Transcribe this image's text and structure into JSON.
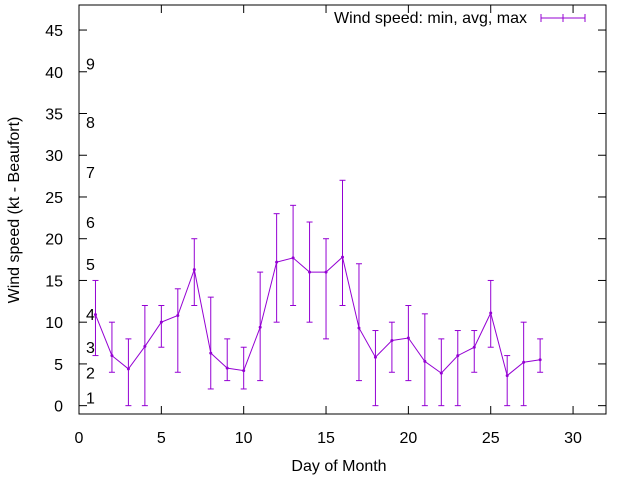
{
  "chart_data": {
    "type": "line",
    "title": "",
    "xlabel": "Day of Month",
    "ylabel": "Wind speed (kt - Beaufort)",
    "xlim": [
      0,
      32
    ],
    "ylim": [
      -1,
      48
    ],
    "xticks": [
      0,
      5,
      10,
      15,
      20,
      25,
      30
    ],
    "yticks": [
      0,
      5,
      10,
      15,
      20,
      25,
      30,
      35,
      40,
      45
    ],
    "grid": false,
    "legend_position": "top-right",
    "beaufort_labels": [
      {
        "label": "1",
        "value": 1
      },
      {
        "label": "2",
        "value": 4
      },
      {
        "label": "3",
        "value": 7
      },
      {
        "label": "4",
        "value": 11
      },
      {
        "label": "5",
        "value": 17
      },
      {
        "label": "6",
        "value": 22
      },
      {
        "label": "7",
        "value": 28
      },
      {
        "label": "8",
        "value": 34
      },
      {
        "label": "9",
        "value": 41
      }
    ],
    "series": [
      {
        "name": "Wind speed: min, avg, max",
        "color": "#9400d3",
        "points": [
          {
            "x": 1,
            "avg": 10.9,
            "min": 6,
            "max": 15
          },
          {
            "x": 2,
            "avg": 6.0,
            "min": 4,
            "max": 10
          },
          {
            "x": 3,
            "avg": 4.4,
            "min": 0,
            "max": 8
          },
          {
            "x": 4,
            "avg": 7.1,
            "min": 0,
            "max": 12
          },
          {
            "x": 5,
            "avg": 10.0,
            "min": 7,
            "max": 12
          },
          {
            "x": 6,
            "avg": 10.8,
            "min": 4,
            "max": 14
          },
          {
            "x": 7,
            "avg": 16.3,
            "min": 12,
            "max": 20
          },
          {
            "x": 8,
            "avg": 6.3,
            "min": 2,
            "max": 13
          },
          {
            "x": 9,
            "avg": 4.5,
            "min": 3,
            "max": 8
          },
          {
            "x": 10,
            "avg": 4.2,
            "min": 2,
            "max": 7
          },
          {
            "x": 11,
            "avg": 9.4,
            "min": 3,
            "max": 16
          },
          {
            "x": 12,
            "avg": 17.2,
            "min": 10,
            "max": 23
          },
          {
            "x": 13,
            "avg": 17.7,
            "min": 12,
            "max": 24
          },
          {
            "x": 14,
            "avg": 16.0,
            "min": 10,
            "max": 22
          },
          {
            "x": 15,
            "avg": 16.0,
            "min": 8,
            "max": 20
          },
          {
            "x": 16,
            "avg": 17.8,
            "min": 12,
            "max": 27
          },
          {
            "x": 17,
            "avg": 9.3,
            "min": 3,
            "max": 17
          },
          {
            "x": 18,
            "avg": 5.8,
            "min": 0,
            "max": 9
          },
          {
            "x": 19,
            "avg": 7.8,
            "min": 4,
            "max": 10
          },
          {
            "x": 20,
            "avg": 8.1,
            "min": 3,
            "max": 12
          },
          {
            "x": 21,
            "avg": 5.3,
            "min": 0,
            "max": 11
          },
          {
            "x": 22,
            "avg": 3.9,
            "min": 0,
            "max": 8
          },
          {
            "x": 23,
            "avg": 6.0,
            "min": 0,
            "max": 9
          },
          {
            "x": 24,
            "avg": 7.0,
            "min": 4,
            "max": 9
          },
          {
            "x": 25,
            "avg": 11.1,
            "min": 7,
            "max": 15
          },
          {
            "x": 26,
            "avg": 3.6,
            "min": 0,
            "max": 6
          },
          {
            "x": 27,
            "avg": 5.2,
            "min": 0,
            "max": 10
          },
          {
            "x": 28,
            "avg": 5.5,
            "min": 4,
            "max": 8
          }
        ]
      }
    ]
  }
}
